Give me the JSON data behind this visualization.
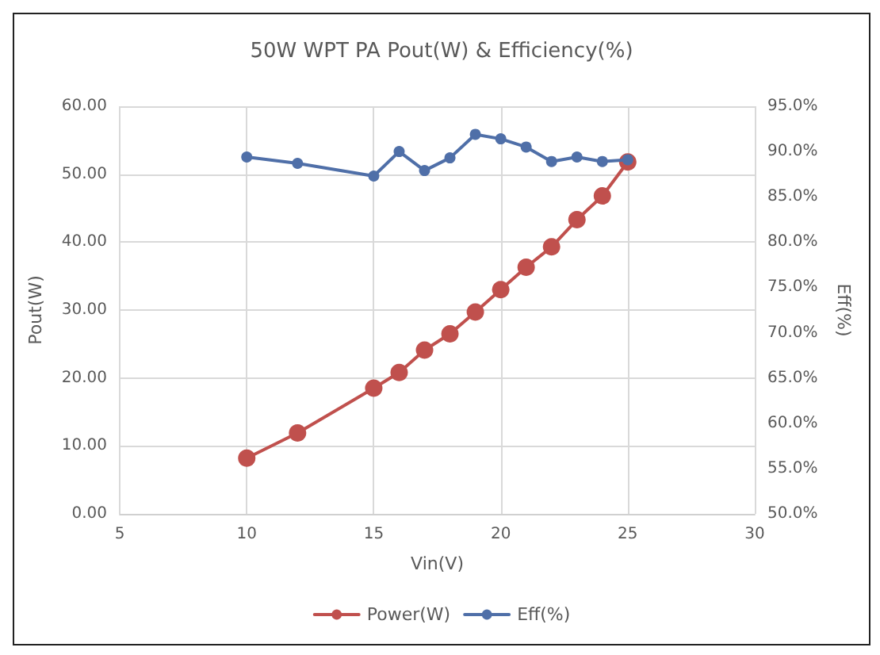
{
  "chart_data": {
    "type": "line",
    "title": "50W WPT PA Pout(W) & Efficiency(%)",
    "xlabel": "Vin(V)",
    "ylabel": "Pout(W)",
    "y2label": "Eff(%)",
    "x": [
      10,
      12,
      15,
      16,
      17,
      18,
      19,
      20,
      21,
      22,
      23,
      24,
      25
    ],
    "series": [
      {
        "name": "Power(W)",
        "color": "#c0504d",
        "values": [
          8.2,
          11.9,
          18.5,
          20.8,
          24.1,
          26.5,
          29.7,
          33.0,
          36.3,
          39.3,
          43.3,
          46.8,
          51.8
        ]
      },
      {
        "name": "Eff(%)",
        "color": "#4f6fa8",
        "axis": "y2",
        "values": [
          89.4,
          88.7,
          87.3,
          90.0,
          87.9,
          89.3,
          91.9,
          91.4,
          90.5,
          88.9,
          89.4,
          88.9,
          89.1
        ]
      }
    ],
    "xlim": [
      5,
      30
    ],
    "xticks": [
      5,
      10,
      15,
      20,
      25,
      30
    ],
    "ylim": [
      0,
      60
    ],
    "yticks": [
      {
        "value": 0,
        "label": "0.00"
      },
      {
        "value": 10,
        "label": "10.00"
      },
      {
        "value": 20,
        "label": "20.00"
      },
      {
        "value": 30,
        "label": "30.00"
      },
      {
        "value": 40,
        "label": "40.00"
      },
      {
        "value": 50,
        "label": "50.00"
      },
      {
        "value": 60,
        "label": "60.00"
      }
    ],
    "y2lim": [
      50,
      95
    ],
    "y2ticks": [
      {
        "value": 50,
        "label": "50.0%"
      },
      {
        "value": 55,
        "label": "55.0%"
      },
      {
        "value": 60,
        "label": "60.0%"
      },
      {
        "value": 65,
        "label": "65.0%"
      },
      {
        "value": 70,
        "label": "70.0%"
      },
      {
        "value": 75,
        "label": "75.0%"
      },
      {
        "value": 80,
        "label": "80.0%"
      },
      {
        "value": 85,
        "label": "85.0%"
      },
      {
        "value": 90,
        "label": "90.0%"
      },
      {
        "value": 95,
        "label": "95.0%"
      }
    ],
    "grid": true,
    "legend": "bottom",
    "marker": "circle",
    "line_style": "solid"
  }
}
